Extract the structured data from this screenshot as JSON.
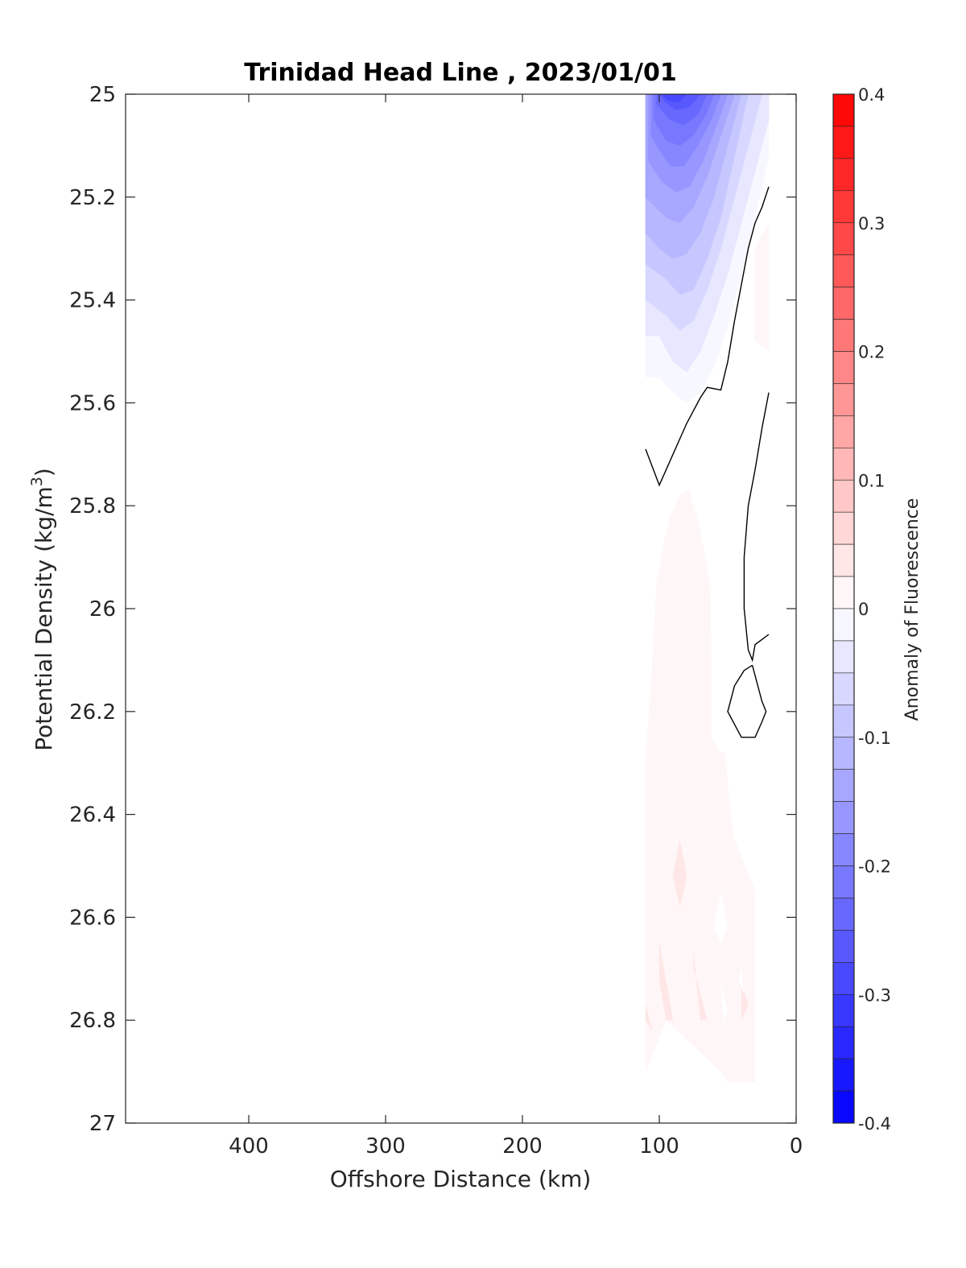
{
  "chart_data": {
    "type": "heatmap",
    "title": "Trinidad Head Line , 2023/01/01",
    "xlabel": "Offshore Distance (km)",
    "ylabel_main": "Potential Density (kg/m",
    "ylabel_sup": "3",
    "ylabel_close": ")",
    "colorbar_label": "Anomaly of Fluorescence",
    "xlim": [
      490,
      0
    ],
    "x_reversed": true,
    "ylim": [
      25,
      27
    ],
    "y_reversed": true,
    "x_ticks": [
      400,
      300,
      200,
      100,
      0
    ],
    "x_tick_labels": [
      "400",
      "300",
      "200",
      "100",
      "0"
    ],
    "y_ticks": [
      25,
      25.2,
      25.4,
      25.6,
      25.8,
      26,
      26.2,
      26.4,
      26.6,
      26.8,
      27
    ],
    "y_tick_labels": [
      "25",
      "25.2",
      "25.4",
      "25.6",
      "25.8",
      "26",
      "26.2",
      "26.4",
      "26.6",
      "26.8",
      "27"
    ],
    "colorbar_range": [
      -0.4,
      0.4
    ],
    "colorbar_ticks": [
      0.4,
      0.3,
      0.2,
      0.1,
      0,
      -0.1,
      -0.2,
      -0.3,
      -0.4
    ],
    "colorbar_tick_labels": [
      "0.4",
      "0.3",
      "0.2",
      "0.1",
      "0",
      "-0.1",
      "-0.2",
      "-0.3",
      "-0.4"
    ],
    "colorbar_levels": 32,
    "colors": {
      "negative": "#0000ff",
      "positive": "#ff0000",
      "zero": "#ffffff",
      "contour": "#000000"
    },
    "data_coverage": {
      "x_range": [
        110,
        20
      ],
      "y_range": [
        25,
        26.9
      ]
    },
    "regions": [
      {
        "name": "negative-anomaly",
        "value": -0.0125,
        "polygon": [
          [
            110,
            25
          ],
          [
            20,
            25
          ],
          [
            20,
            25.12
          ],
          [
            35,
            25.3
          ],
          [
            50,
            25.45
          ],
          [
            60,
            25.53
          ],
          [
            70,
            25.58
          ],
          [
            80,
            25.6
          ],
          [
            90,
            25.58
          ],
          [
            100,
            25.55
          ],
          [
            110,
            25.55
          ]
        ]
      },
      {
        "name": "negative-anomaly",
        "value": -0.0375,
        "polygon": [
          [
            110,
            25
          ],
          [
            20,
            25
          ],
          [
            20,
            25.05
          ],
          [
            35,
            25.2
          ],
          [
            50,
            25.35
          ],
          [
            60,
            25.43
          ],
          [
            70,
            25.5
          ],
          [
            80,
            25.54
          ],
          [
            90,
            25.52
          ],
          [
            100,
            25.47
          ],
          [
            110,
            25.47
          ]
        ]
      },
      {
        "name": "negative-anomaly",
        "value": -0.0625,
        "polygon": [
          [
            110,
            25
          ],
          [
            25,
            25
          ],
          [
            30,
            25.05
          ],
          [
            45,
            25.2
          ],
          [
            55,
            25.3
          ],
          [
            65,
            25.38
          ],
          [
            75,
            25.44
          ],
          [
            85,
            25.46
          ],
          [
            95,
            25.43
          ],
          [
            110,
            25.4
          ]
        ]
      },
      {
        "name": "negative-anomaly",
        "value": -0.0875,
        "polygon": [
          [
            110,
            25
          ],
          [
            35,
            25
          ],
          [
            45,
            25.12
          ],
          [
            55,
            25.24
          ],
          [
            65,
            25.32
          ],
          [
            75,
            25.38
          ],
          [
            85,
            25.39
          ],
          [
            95,
            25.36
          ],
          [
            110,
            25.33
          ]
        ]
      },
      {
        "name": "negative-anomaly",
        "value": -0.1125,
        "polygon": [
          [
            110,
            25
          ],
          [
            40,
            25
          ],
          [
            50,
            25.1
          ],
          [
            60,
            25.2
          ],
          [
            70,
            25.27
          ],
          [
            80,
            25.31
          ],
          [
            90,
            25.32
          ],
          [
            100,
            25.3
          ],
          [
            110,
            25.27
          ]
        ]
      },
      {
        "name": "negative-anomaly",
        "value": -0.1375,
        "polygon": [
          [
            110,
            25
          ],
          [
            45,
            25
          ],
          [
            55,
            25.08
          ],
          [
            65,
            25.16
          ],
          [
            75,
            25.22
          ],
          [
            85,
            25.25
          ],
          [
            95,
            25.24
          ],
          [
            110,
            25.2
          ]
        ]
      },
      {
        "name": "negative-anomaly",
        "value": -0.1625,
        "polygon": [
          [
            108,
            25
          ],
          [
            50,
            25
          ],
          [
            58,
            25.06
          ],
          [
            68,
            25.13
          ],
          [
            78,
            25.18
          ],
          [
            88,
            25.19
          ],
          [
            98,
            25.17
          ],
          [
            108,
            25.13
          ]
        ]
      },
      {
        "name": "negative-anomaly",
        "value": -0.1875,
        "polygon": [
          [
            106,
            25
          ],
          [
            55,
            25
          ],
          [
            62,
            25.05
          ],
          [
            72,
            25.1
          ],
          [
            82,
            25.14
          ],
          [
            92,
            25.14
          ],
          [
            102,
            25.1
          ],
          [
            106,
            25.08
          ]
        ]
      },
      {
        "name": "negative-anomaly",
        "value": -0.2125,
        "polygon": [
          [
            104,
            25
          ],
          [
            60,
            25
          ],
          [
            66,
            25.04
          ],
          [
            75,
            25.08
          ],
          [
            85,
            25.1
          ],
          [
            95,
            25.09
          ],
          [
            104,
            25.05
          ]
        ]
      },
      {
        "name": "negative-anomaly",
        "value": -0.2375,
        "polygon": [
          [
            102,
            25
          ],
          [
            65,
            25
          ],
          [
            72,
            25.04
          ],
          [
            82,
            25.06
          ],
          [
            92,
            25.05
          ],
          [
            102,
            25.02
          ]
        ]
      },
      {
        "name": "negative-anomaly",
        "value": -0.2625,
        "polygon": [
          [
            100,
            25
          ],
          [
            70,
            25
          ],
          [
            78,
            25.025
          ],
          [
            88,
            25.03
          ],
          [
            96,
            25.015
          ]
        ]
      },
      {
        "name": "negative-anomaly",
        "value": -0.2875,
        "polygon": [
          [
            98,
            25
          ],
          [
            80,
            25
          ],
          [
            86,
            25.015
          ],
          [
            94,
            25.012
          ]
        ]
      },
      {
        "name": "positive-anomaly",
        "value": 0.0125,
        "polygon": [
          [
            30,
            25.3
          ],
          [
            20,
            25.25
          ],
          [
            20,
            25.5
          ],
          [
            30,
            25.48
          ]
        ]
      },
      {
        "name": "positive-anomaly",
        "value": 0.0125,
        "polygon": [
          [
            85,
            25.78
          ],
          [
            78,
            25.77
          ],
          [
            70,
            25.85
          ],
          [
            63,
            25.95
          ],
          [
            62,
            26.1
          ],
          [
            62,
            26.25
          ],
          [
            55,
            26.28
          ],
          [
            52,
            26.28
          ],
          [
            48,
            26.4
          ],
          [
            45,
            26.45
          ],
          [
            30,
            26.55
          ],
          [
            30,
            26.92
          ],
          [
            50,
            26.92
          ],
          [
            55,
            26.9
          ],
          [
            95,
            26.8
          ],
          [
            110,
            26.9
          ],
          [
            110,
            26.3
          ],
          [
            105,
            26.1
          ],
          [
            102,
            25.95
          ],
          [
            95,
            25.85
          ],
          [
            92,
            25.82
          ]
        ]
      },
      {
        "name": "positive-anomaly",
        "value": 0.0375,
        "polygon": [
          [
            90,
            26.52
          ],
          [
            85,
            26.45
          ],
          [
            80,
            26.52
          ],
          [
            85,
            26.58
          ]
        ]
      },
      {
        "name": "positive-anomaly",
        "value": 0.0375,
        "polygon": [
          [
            100,
            26.72
          ],
          [
            95,
            26.8
          ],
          [
            90,
            26.8
          ],
          [
            100,
            26.65
          ]
        ]
      },
      {
        "name": "positive-anomaly",
        "value": 0.0375,
        "polygon": [
          [
            75,
            26.67
          ],
          [
            70,
            26.8
          ],
          [
            65,
            26.8
          ],
          [
            75,
            26.7
          ]
        ]
      },
      {
        "name": "positive-anomaly",
        "value": 0.0375,
        "polygon": [
          [
            110,
            26.8
          ],
          [
            105,
            26.82
          ],
          [
            110,
            26.77
          ]
        ]
      },
      {
        "name": "positive-anomaly",
        "value": 0.0375,
        "polygon": [
          [
            40,
            26.8
          ],
          [
            35,
            26.77
          ],
          [
            40,
            26.73
          ]
        ]
      }
    ],
    "holes": [
      {
        "name": "zero-gap",
        "polygon": [
          [
            55,
            26.55
          ],
          [
            50,
            26.62
          ],
          [
            55,
            26.65
          ],
          [
            60,
            26.62
          ]
        ]
      },
      {
        "name": "zero-gap",
        "polygon": [
          [
            42,
            26.72
          ],
          [
            38,
            26.75
          ],
          [
            40,
            26.7
          ]
        ]
      },
      {
        "name": "zero-gap",
        "polygon": [
          [
            55,
            26.73
          ],
          [
            50,
            26.78
          ],
          [
            53,
            26.8
          ]
        ]
      }
    ],
    "contours_zero": [
      [
        [
          110,
          25.69
        ],
        [
          100,
          25.76
        ],
        [
          90,
          25.7
        ],
        [
          80,
          25.64
        ],
        [
          70,
          25.59
        ],
        [
          65,
          25.57
        ],
        [
          55,
          25.575
        ],
        [
          50,
          25.52
        ],
        [
          45,
          25.44
        ],
        [
          40,
          25.37
        ],
        [
          35,
          25.3
        ],
        [
          30,
          25.25
        ],
        [
          25,
          25.22
        ],
        [
          20,
          25.18
        ]
      ],
      [
        [
          20,
          25.58
        ],
        [
          25,
          25.65
        ],
        [
          30,
          25.73
        ],
        [
          35,
          25.8
        ],
        [
          38,
          25.9
        ],
        [
          38,
          26
        ],
        [
          35,
          26.08
        ],
        [
          32,
          26.1
        ],
        [
          30,
          26.07
        ],
        [
          25,
          26.06
        ],
        [
          20,
          26.05
        ]
      ],
      [
        [
          32,
          26.11
        ],
        [
          25,
          26.18
        ],
        [
          22,
          26.2
        ],
        [
          25,
          26.22
        ],
        [
          30,
          26.25
        ],
        [
          40,
          26.25
        ],
        [
          50,
          26.2
        ],
        [
          45,
          26.15
        ],
        [
          38,
          26.12
        ],
        [
          32,
          26.11
        ]
      ]
    ]
  }
}
